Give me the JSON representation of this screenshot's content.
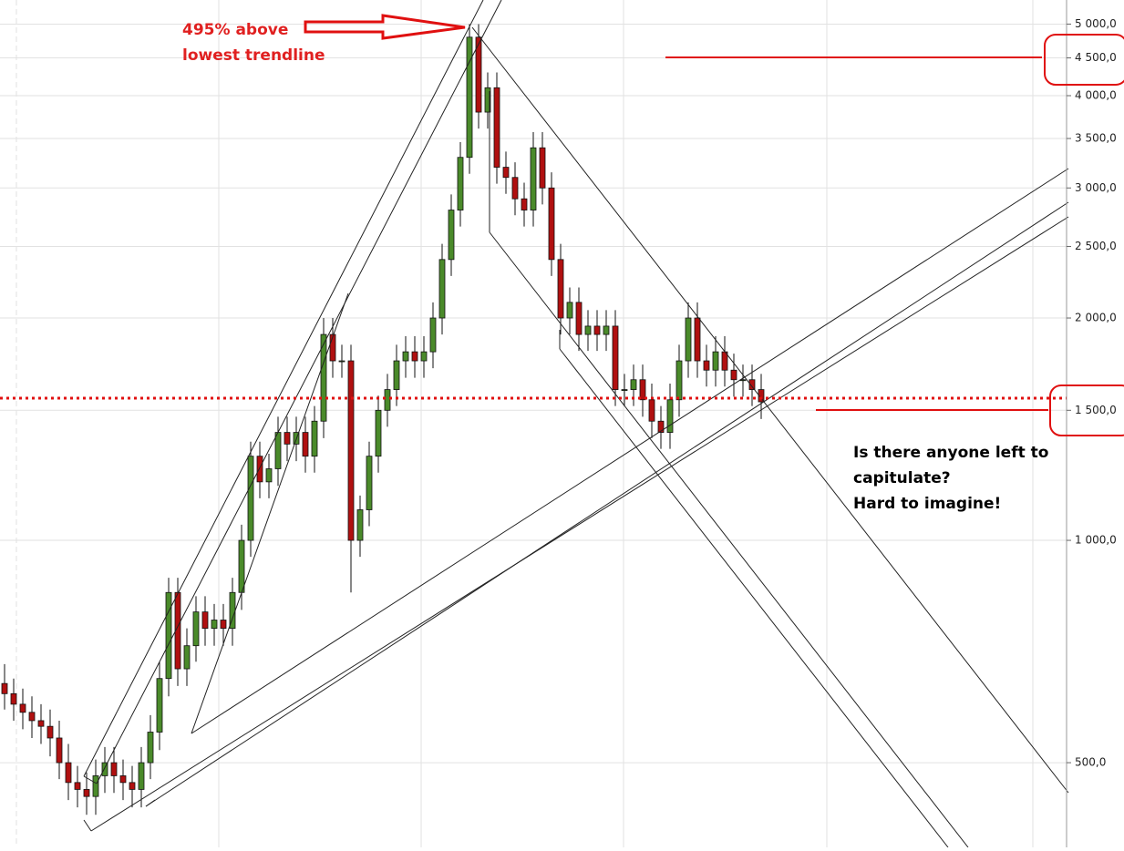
{
  "chart_data": {
    "type": "candlestick",
    "annotations": {
      "peak": [
        "495% above",
        "lowest trendline"
      ],
      "comment": [
        "Is there anyone left to",
        "capitulate?",
        "Hard to imagine!"
      ]
    },
    "log_scale": true,
    "ylim": [
      384,
      5390
    ],
    "yticks": [
      {
        "value": 500,
        "label": "500,0"
      },
      {
        "value": 1000,
        "label": "1 000,0"
      },
      {
        "value": 1500,
        "label": "1 500,0"
      },
      {
        "value": 2000,
        "label": "2 000,0"
      },
      {
        "value": 2500,
        "label": "2 500,0"
      },
      {
        "value": 3000,
        "label": "3 000,0"
      },
      {
        "value": 3500,
        "label": "3 500,0"
      },
      {
        "value": 4000,
        "label": "4 000,0"
      },
      {
        "value": 4500,
        "label": "4 500,0"
      },
      {
        "value": 5000,
        "label": "5 000,0"
      }
    ],
    "grid": true,
    "up_color": "#4a8a2a",
    "down_color": "#b01010",
    "open": [
      640,
      620,
      600,
      585,
      570,
      560,
      540,
      500,
      470,
      460,
      450,
      480,
      500,
      480,
      470,
      460,
      500,
      550,
      650,
      850,
      670,
      720,
      800,
      760,
      780,
      760,
      850,
      1000,
      1300,
      1200,
      1250,
      1400,
      1350,
      1400,
      1300,
      1450,
      1900,
      1750,
      1750,
      1000,
      1100,
      1300,
      1500,
      1600,
      1750,
      1800,
      1750,
      1800,
      2000,
      2400,
      2800,
      3300,
      4800,
      3800,
      4100,
      3200,
      3100,
      2900,
      2800,
      3400,
      3000,
      2400,
      2000,
      2100,
      1900,
      1950,
      1900,
      1950,
      1600,
      1600,
      1650,
      1550,
      1450,
      1400,
      1550,
      1750,
      2000,
      1750,
      1700,
      1800,
      1700,
      1650,
      1650,
      1600
    ],
    "high": [
      680,
      650,
      630,
      615,
      600,
      590,
      570,
      530,
      495,
      485,
      505,
      525,
      525,
      505,
      495,
      525,
      580,
      685,
      890,
      890,
      760,
      840,
      840,
      820,
      820,
      890,
      1050,
      1360,
      1360,
      1310,
      1470,
      1470,
      1470,
      1470,
      1520,
      2000,
      2000,
      1840,
      1840,
      1150,
      1360,
      1570,
      1680,
      1840,
      1890,
      1890,
      1890,
      2100,
      2520,
      2940,
      3460,
      5000,
      5000,
      4300,
      4300,
      3360,
      3250,
      3050,
      3570,
      3570,
      3150,
      2520,
      2200,
      2200,
      2050,
      2050,
      2050,
      2050,
      1680,
      1730,
      1730,
      1630,
      1520,
      1630,
      1840,
      2100,
      2100,
      1840,
      1890,
      1890,
      1790,
      1730,
      1730,
      1680
    ],
    "low": [
      590,
      570,
      555,
      540,
      530,
      510,
      475,
      445,
      435,
      425,
      425,
      455,
      455,
      445,
      435,
      435,
      475,
      520,
      615,
      635,
      635,
      685,
      720,
      720,
      720,
      720,
      805,
      950,
      1140,
      1140,
      1185,
      1280,
      1280,
      1235,
      1235,
      1375,
      1660,
      1660,
      850,
      950,
      1045,
      1235,
      1425,
      1520,
      1660,
      1660,
      1660,
      1710,
      1900,
      2280,
      2660,
      3135,
      3610,
      3610,
      3040,
      2945,
      2755,
      2660,
      2660,
      2850,
      2280,
      1900,
      1900,
      1805,
      1805,
      1805,
      1805,
      1520,
      1520,
      1520,
      1470,
      1375,
      1330,
      1330,
      1470,
      1660,
      1660,
      1615,
      1615,
      1615,
      1565,
      1565,
      1520,
      1460
    ],
    "close": [
      620,
      600,
      585,
      570,
      560,
      540,
      500,
      470,
      460,
      450,
      480,
      500,
      480,
      470,
      460,
      500,
      550,
      650,
      850,
      670,
      720,
      800,
      760,
      780,
      760,
      850,
      1000,
      1300,
      1200,
      1250,
      1400,
      1350,
      1400,
      1300,
      1450,
      1900,
      1750,
      1750,
      1000,
      1100,
      1300,
      1500,
      1600,
      1750,
      1800,
      1750,
      1800,
      2000,
      2400,
      2800,
      3300,
      4800,
      3800,
      4100,
      3200,
      3100,
      2900,
      2800,
      3400,
      3000,
      2400,
      2000,
      2100,
      1900,
      1950,
      1900,
      1950,
      1600,
      1600,
      1650,
      1550,
      1450,
      1400,
      1550,
      1750,
      2000,
      1750,
      1700,
      1800,
      1700,
      1650,
      1650,
      1600,
      1540
    ]
  }
}
